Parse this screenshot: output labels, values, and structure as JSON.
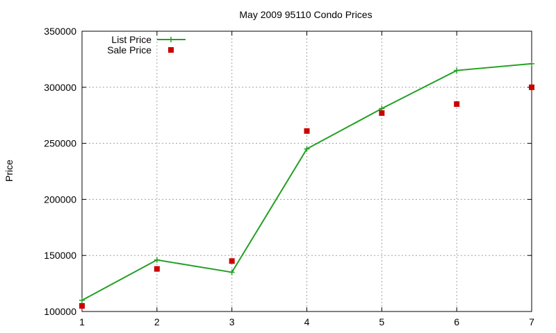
{
  "chart_data": {
    "type": "line",
    "title": "May 2009 95110 Condo Prices",
    "xlabel": "",
    "ylabel": "Price",
    "xlim": [
      1,
      7
    ],
    "ylim": [
      100000,
      350000
    ],
    "x_ticks": [
      1,
      2,
      3,
      4,
      5,
      6,
      7
    ],
    "y_ticks": [
      100000,
      150000,
      200000,
      250000,
      300000,
      350000
    ],
    "grid": true,
    "legend_position": "top-left",
    "series": [
      {
        "name": "List Price",
        "style": "line-with-plus-markers",
        "color": "#22a022",
        "x": [
          1,
          2,
          3,
          4,
          5,
          6,
          7
        ],
        "y": [
          110000,
          146000,
          135000,
          245000,
          281000,
          315000,
          321000
        ]
      },
      {
        "name": "Sale Price",
        "style": "square-points",
        "color": "#cc0000",
        "x": [
          1,
          2,
          3,
          4,
          5,
          6,
          7
        ],
        "y": [
          105000,
          138000,
          145000,
          261000,
          277000,
          285000,
          300000
        ]
      }
    ]
  }
}
